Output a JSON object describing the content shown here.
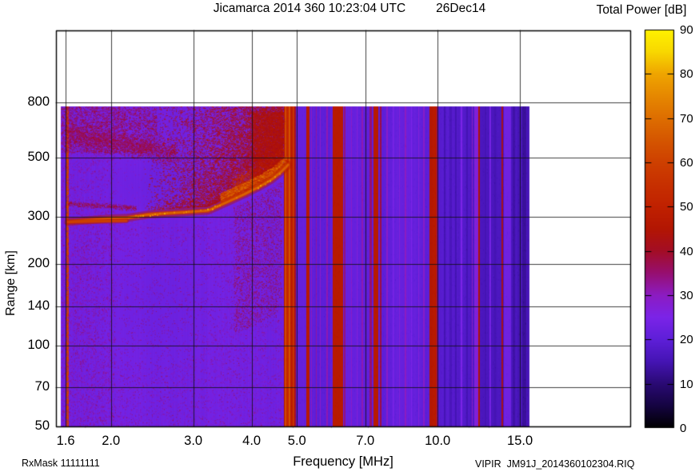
{
  "header": {
    "title_main": "Jicamarca 2014 360 10:23:04 UTC",
    "title_date": "26Dec14"
  },
  "colorbar": {
    "title": "Total Power [dB]",
    "min_db": 0,
    "max_db": 90,
    "tick_values": [
      90,
      80,
      70,
      60,
      50,
      40,
      30,
      20,
      10,
      0
    ],
    "tick_labels": [
      "90",
      "80",
      "70",
      "60",
      "50",
      "40",
      "30",
      "20",
      "10",
      "0"
    ],
    "palette_stops": [
      [
        0,
        "#000000"
      ],
      [
        5,
        "#150441"
      ],
      [
        10,
        "#2a0a74"
      ],
      [
        15,
        "#4514b4"
      ],
      [
        20,
        "#5e1fd8"
      ],
      [
        25,
        "#7b24e8"
      ],
      [
        30,
        "#8c1cc2"
      ],
      [
        35,
        "#970f70"
      ],
      [
        40,
        "#a30d25"
      ],
      [
        45,
        "#b31603"
      ],
      [
        50,
        "#c02100"
      ],
      [
        55,
        "#c73000"
      ],
      [
        60,
        "#ce4000"
      ],
      [
        65,
        "#d55600"
      ],
      [
        70,
        "#de6e00"
      ],
      [
        75,
        "#e68800"
      ],
      [
        80,
        "#efa500"
      ],
      [
        85,
        "#f8d800"
      ],
      [
        90,
        "#fff200"
      ]
    ]
  },
  "axes": {
    "x": {
      "label": "Frequency [MHz]",
      "scale": "log",
      "tick_values": [
        1.6,
        2,
        3,
        4,
        5,
        7,
        10,
        15
      ],
      "tick_labels": [
        "1.6",
        "2.0",
        "3.0",
        "4.0",
        "5.0",
        "7.0",
        "10.0",
        "15.0"
      ]
    },
    "y": {
      "label": "Range [km]",
      "scale": "log",
      "tick_values": [
        800,
        500,
        300,
        200,
        140,
        100,
        70,
        50
      ],
      "tick_labels": [
        "800",
        "500",
        "300",
        "200",
        "140",
        "100",
        "70",
        "50"
      ]
    }
  },
  "footer": {
    "rx_mask": "RxMask 11111111",
    "file_id": "VIPIR  JM91J_2014360102304.RIQ"
  },
  "chart_data": {
    "type": "heatmap",
    "title": "Jicamarca 2014 360 10:23:04 UTC 26Dec14",
    "xlabel": "Frequency [MHz]",
    "ylabel": "Range [km]",
    "zlabel": "Total Power [dB]",
    "x_range_mhz": [
      1.56,
      15.66
    ],
    "y_range_km": [
      50,
      772
    ],
    "z_range_db": [
      0,
      90
    ],
    "grid": true,
    "background_db": {
      "left_region": 23.3,
      "mid_region": 21,
      "high_region": 17.5
    },
    "echo_cutoff_mhz": 4.67,
    "f_layer_trace": [
      [
        1.62,
        288
      ],
      [
        1.79,
        292
      ],
      [
        1.97,
        296
      ],
      [
        2.17,
        298
      ],
      [
        2.4,
        306
      ],
      [
        2.65,
        310
      ],
      [
        2.92,
        313
      ],
      [
        3.23,
        317
      ],
      [
        3.56,
        342
      ],
      [
        3.85,
        364
      ],
      [
        4.17,
        390
      ],
      [
        4.42,
        414
      ],
      [
        4.64,
        444
      ],
      [
        4.79,
        469
      ]
    ],
    "diffuse_band": {
      "from_mhz_km": [
        1.6,
        610
      ],
      "to_mhz_km": [
        2.75,
        515
      ],
      "thickness_km": 40,
      "db": [
        33,
        43
      ]
    },
    "spread_f_scatter": {
      "f_mhz": [
        2.35,
        4.67
      ],
      "top_km": 772,
      "db": [
        37,
        50
      ]
    },
    "rfi_stripes": [
      [
        1.617,
        3,
        60
      ],
      [
        4.7,
        2,
        46
      ],
      [
        4.735,
        2,
        62
      ],
      [
        4.775,
        3,
        52
      ],
      [
        4.82,
        2,
        64
      ],
      [
        4.865,
        3,
        48
      ],
      [
        4.91,
        2,
        56
      ],
      [
        4.955,
        2,
        40
      ],
      [
        5.27,
        4,
        47
      ],
      [
        5.38,
        1,
        30
      ],
      [
        5.5,
        1,
        32
      ],
      [
        5.62,
        1,
        29
      ],
      [
        5.8,
        2,
        31
      ],
      [
        6.03,
        5,
        47
      ],
      [
        6.11,
        3,
        33
      ],
      [
        6.19,
        8,
        47
      ],
      [
        6.33,
        2,
        34
      ],
      [
        6.55,
        1,
        29
      ],
      [
        6.72,
        1,
        27
      ],
      [
        6.9,
        2,
        31
      ],
      [
        7.18,
        3,
        35
      ],
      [
        7.38,
        6,
        47
      ],
      [
        7.55,
        2,
        38
      ],
      [
        7.8,
        2,
        29
      ],
      [
        8.05,
        2,
        24
      ],
      [
        8.3,
        1,
        27
      ],
      [
        8.55,
        2,
        30
      ],
      [
        8.8,
        1,
        25
      ],
      [
        9.1,
        1,
        27
      ],
      [
        9.35,
        2,
        29
      ],
      [
        9.7,
        4,
        46
      ],
      [
        9.86,
        5,
        47
      ],
      [
        9.99,
        2,
        35
      ],
      [
        10.35,
        2,
        15
      ],
      [
        10.65,
        3,
        16
      ],
      [
        10.95,
        2,
        15
      ],
      [
        11.25,
        2,
        25
      ],
      [
        11.55,
        2,
        15
      ],
      [
        11.85,
        1,
        29
      ],
      [
        12.1,
        6,
        27
      ],
      [
        12.28,
        2,
        44
      ],
      [
        12.65,
        2,
        15
      ],
      [
        12.95,
        2,
        24
      ],
      [
        13.25,
        2,
        15
      ],
      [
        13.75,
        2,
        41
      ],
      [
        14.1,
        9,
        23
      ],
      [
        14.55,
        3,
        14
      ],
      [
        14.95,
        4,
        15
      ],
      [
        15.35,
        5,
        13
      ]
    ]
  }
}
